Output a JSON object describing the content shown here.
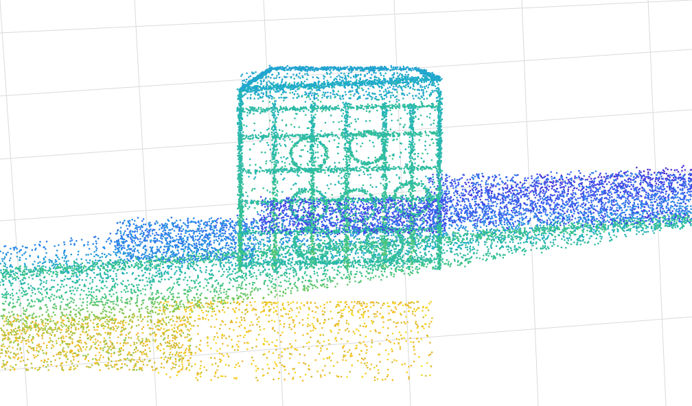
{
  "chart_data": {
    "type": "scatter",
    "title": "",
    "xlabel": "",
    "ylabel": "",
    "zlabel": "",
    "grid": true,
    "legend": "none",
    "color_by": "height",
    "colormap": [
      "#f7e51a",
      "#f2b52a",
      "#8cc94a",
      "#3bc48a",
      "#1fb0c4",
      "#2a8be8",
      "#3b5ff0",
      "#4a2fd6"
    ],
    "series": [
      {
        "name": "",
        "x": [
          -5,
          5
        ],
        "y": [
          -1,
          1
        ],
        "z": [
          0,
          3
        ]
      }
    ]
  }
}
